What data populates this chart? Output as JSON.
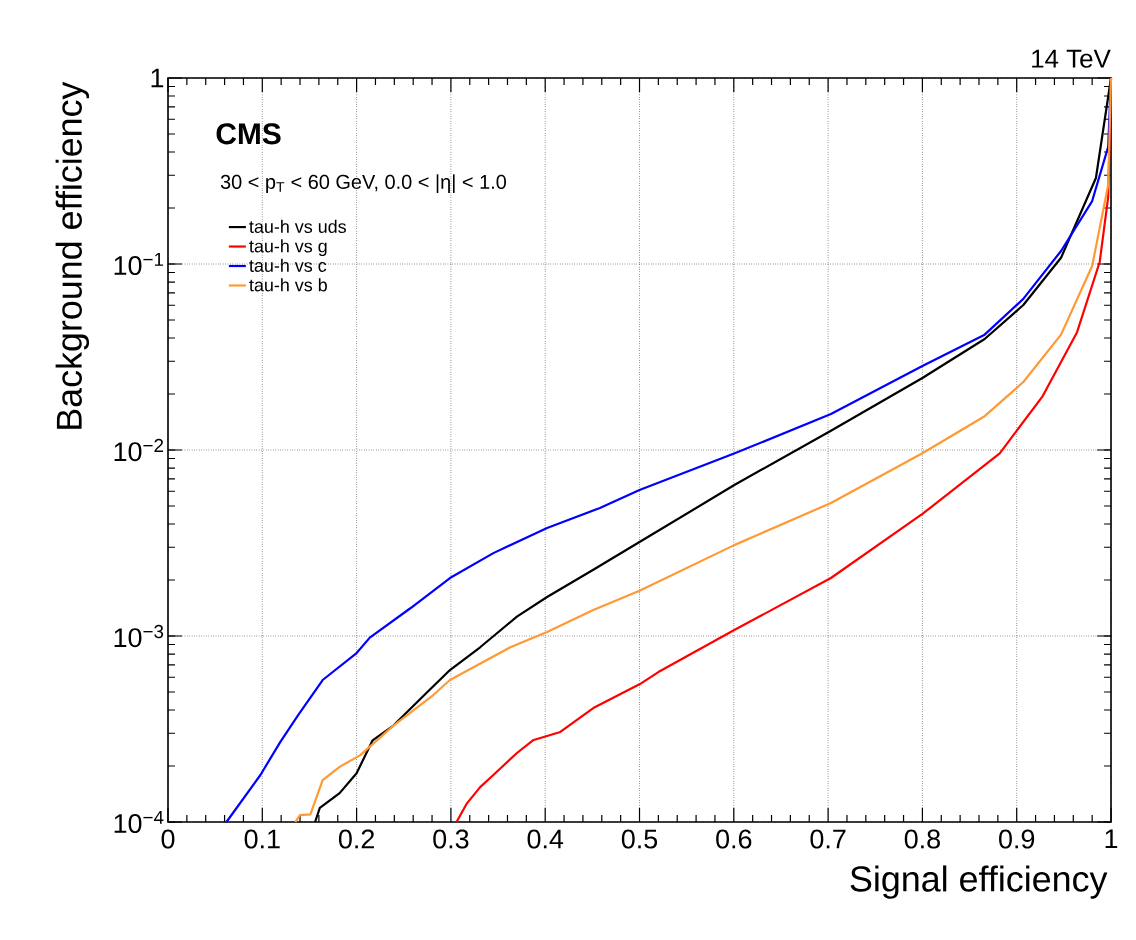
{
  "chart_data": {
    "type": "line",
    "xlabel": "Signal efficiency",
    "ylabel": "Background efficiency",
    "annotations": [
      "14 TeV",
      "CMS",
      "30 < p$_{T}$ < 60 GeV, 0.0 < |η| < 1.0"
    ],
    "xlim": [
      0,
      1
    ],
    "ylim": [
      0.0001,
      1
    ],
    "log": "y",
    "xticks": [
      0,
      0.1,
      0.2,
      0.3,
      0.4,
      0.5,
      0.6,
      0.7,
      0.8,
      0.9,
      1
    ],
    "yticks": [
      {
        "value": 0.0001,
        "label": "10$^{−4}$"
      },
      {
        "value": 0.001,
        "label": "10$^{−3}$"
      },
      {
        "value": 0.01,
        "label": "10$^{−2}$"
      },
      {
        "value": 0.1,
        "label": "10$^{−1}$"
      },
      1
    ],
    "grid": true,
    "legend": "top left",
    "line_style": "solid",
    "series": [
      {
        "name": "tau-h vs uds",
        "color": "#000000",
        "x": [
          0.156,
          0.161,
          0.182,
          0.2,
          0.217,
          0.239,
          0.274,
          0.299,
          0.331,
          0.37,
          0.402,
          0.451,
          0.5,
          0.601,
          0.703,
          0.8,
          0.866,
          0.907,
          0.947,
          0.984,
          1.0
        ],
        "values": [
          0.0001,
          0.000119,
          0.000143,
          0.000183,
          0.000275,
          0.00033,
          0.000494,
          0.000656,
          0.00087,
          0.00127,
          0.00162,
          0.00227,
          0.0032,
          0.0065,
          0.0127,
          0.0244,
          0.0395,
          0.0602,
          0.108,
          0.29,
          1
        ]
      },
      {
        "name": "tau-h vs g",
        "color": "#ff0000",
        "x": [
          0.306,
          0.317,
          0.331,
          0.345,
          0.37,
          0.387,
          0.416,
          0.451,
          0.5,
          0.52,
          0.601,
          0.703,
          0.8,
          0.882,
          0.927,
          0.964,
          0.988,
          0.997,
          1.0
        ],
        "values": [
          0.0001,
          0.000126,
          0.000154,
          0.000179,
          0.000235,
          0.000275,
          0.000305,
          0.00041,
          0.00055,
          0.00064,
          0.00108,
          0.00205,
          0.00453,
          0.0096,
          0.0193,
          0.043,
          0.1025,
          0.229,
          1
        ]
      },
      {
        "name": "tau-h vs c",
        "color": "#0000ff",
        "x": [
          0.062,
          0.098,
          0.119,
          0.138,
          0.164,
          0.2,
          0.214,
          0.257,
          0.299,
          0.345,
          0.402,
          0.458,
          0.5,
          0.601,
          0.703,
          0.8,
          0.866,
          0.907,
          0.947,
          0.98,
          0.997,
          1.0
        ],
        "values": [
          0.0001,
          0.000179,
          0.000269,
          0.000376,
          0.00058,
          0.00081,
          0.00098,
          0.00141,
          0.00205,
          0.00279,
          0.00381,
          0.00488,
          0.0061,
          0.0096,
          0.0156,
          0.0283,
          0.0417,
          0.0649,
          0.1175,
          0.218,
          0.426,
          1
        ]
      },
      {
        "name": "tau-h vs b",
        "color": "#ff9933",
        "x": [
          0.135,
          0.14,
          0.151,
          0.164,
          0.182,
          0.204,
          0.239,
          0.281,
          0.299,
          0.363,
          0.402,
          0.451,
          0.5,
          0.601,
          0.703,
          0.8,
          0.866,
          0.907,
          0.947,
          0.98,
          0.997,
          1.0
        ],
        "values": [
          0.0001,
          0.000109,
          0.00011,
          0.000168,
          0.000198,
          0.000229,
          0.00033,
          0.00048,
          0.00058,
          0.00087,
          0.00105,
          0.00138,
          0.00175,
          0.00309,
          0.00519,
          0.0096,
          0.0152,
          0.0232,
          0.0417,
          0.0975,
          0.266,
          1
        ]
      }
    ]
  }
}
